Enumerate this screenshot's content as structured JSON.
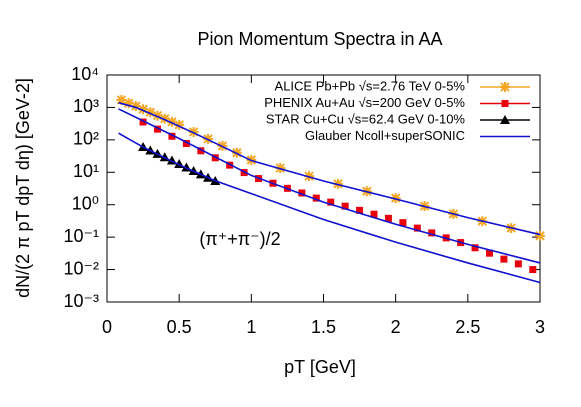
{
  "chart_data": {
    "type": "scatter",
    "title": "Pion Momentum Spectra in AA",
    "x_label": "pT [GeV]",
    "y_label": "dN/(2 π pT dpT dη) [GeV-2]",
    "annotation": "(π⁺+π⁻)/2",
    "log_y": true,
    "legend": "top-right",
    "xlim": [
      0,
      3
    ],
    "xticks": [
      0,
      0.5,
      1,
      1.5,
      2,
      2.5,
      3
    ],
    "ylim": [
      0.001,
      10000
    ],
    "yticks": [
      {
        "value": 0.001,
        "label": "10⁻³"
      },
      {
        "value": 0.01,
        "label": "10⁻²"
      },
      {
        "value": 0.1,
        "label": "10⁻¹"
      },
      {
        "value": 1,
        "label": "10⁰"
      },
      {
        "value": 10,
        "label": "10¹"
      },
      {
        "value": 100,
        "label": "10²"
      },
      {
        "value": 1000,
        "label": "10³"
      },
      {
        "value": 10000,
        "label": "10⁴"
      }
    ],
    "series": [
      {
        "name": "ALICE Pb+Pb √s=2.76 TeV 0-5%",
        "color": "#f5a623",
        "marker": "star",
        "x": [
          0.1,
          0.15,
          0.2,
          0.25,
          0.3,
          0.35,
          0.4,
          0.45,
          0.5,
          0.6,
          0.7,
          0.8,
          0.9,
          1.0,
          1.2,
          1.4,
          1.6,
          1.8,
          2.0,
          2.2,
          2.4,
          2.6,
          2.8,
          3.0
        ],
        "values": [
          1700,
          1360,
          1100,
          880,
          710,
          560,
          450,
          360,
          290,
          175,
          107,
          65,
          40,
          24,
          13.5,
          7.6,
          4.4,
          2.6,
          1.6,
          0.91,
          0.52,
          0.31,
          0.19,
          0.11
        ]
      },
      {
        "name": "PHENIX Au+Au √s=200 GeV 0-5%",
        "color": "#e8000b",
        "marker": "square",
        "x": [
          0.25,
          0.35,
          0.45,
          0.55,
          0.65,
          0.75,
          0.85,
          0.95,
          1.05,
          1.15,
          1.25,
          1.35,
          1.45,
          1.55,
          1.65,
          1.75,
          1.85,
          1.95,
          2.05,
          2.15,
          2.25,
          2.35,
          2.45,
          2.55,
          2.65,
          2.75,
          2.85,
          2.95
        ],
        "values": [
          355,
          214,
          129,
          77,
          46,
          28,
          16.6,
          9.8,
          6.4,
          4.6,
          3.2,
          2.3,
          1.6,
          1.2,
          0.9,
          0.67,
          0.51,
          0.38,
          0.28,
          0.19,
          0.135,
          0.095,
          0.068,
          0.047,
          0.032,
          0.021,
          0.015,
          0.01
        ]
      },
      {
        "name": "STAR Cu+Cu √s=62.4 GeV 0-10%",
        "color": "#000000",
        "marker": "triangle",
        "x": [
          0.25,
          0.3,
          0.35,
          0.4,
          0.45,
          0.5,
          0.55,
          0.6,
          0.65,
          0.7,
          0.75
        ],
        "values": [
          60,
          47,
          37,
          29,
          23,
          18,
          14,
          11,
          8.6,
          6.8,
          5.4
        ]
      },
      {
        "name": "Glauber Ncoll+superSONIC",
        "color": "#1010d0",
        "marker": "line",
        "lines": [
          {
            "x": [
              0.08,
              0.2,
              0.4,
              0.6,
              0.8,
              1.0,
              1.5,
              2,
              2.5,
              3
            ],
            "values": [
              1400,
              1000,
              420,
              165,
              62,
              23,
              5.4,
              1.5,
              0.4,
              0.12
            ]
          },
          {
            "x": [
              0.08,
              0.5,
              1,
              1.5,
              2,
              2.5,
              3
            ],
            "values": [
              900,
              110,
              8,
              1.2,
              0.25,
              0.06,
              0.016
            ]
          },
          {
            "x": [
              0.08,
              0.25,
              0.5,
              0.75,
              1,
              1.5,
              2,
              2.5,
              3
            ],
            "values": [
              160,
              60,
              17,
              5.5,
              2.2,
              0.35,
              0.07,
              0.016,
              0.004
            ]
          }
        ]
      }
    ]
  }
}
